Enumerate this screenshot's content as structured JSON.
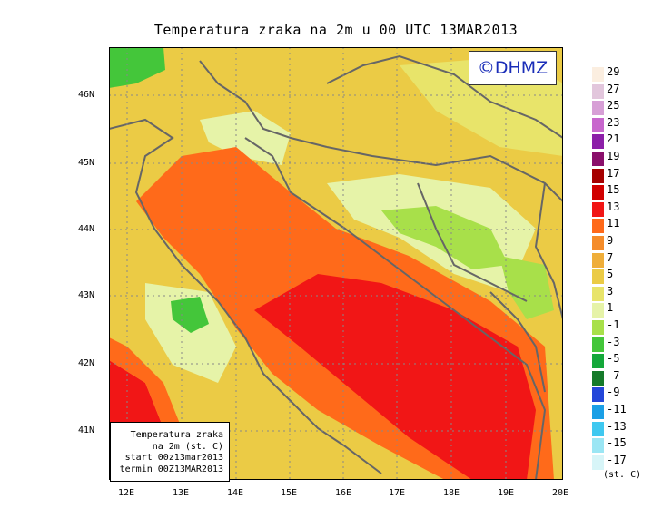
{
  "title": "Temperatura zraka na 2m u 00 UTC 13MAR2013",
  "stamp": "©DHMZ",
  "lat_labels": [
    "46N",
    "45N",
    "44N",
    "43N",
    "42N",
    "41N"
  ],
  "lon_labels": [
    "12E",
    "13E",
    "14E",
    "15E",
    "16E",
    "17E",
    "18E",
    "19E",
    "20E"
  ],
  "info": {
    "line1": "Temperatura zraka",
    "line2": "na 2m (st. C)",
    "line3": "start 00z13mar2013",
    "line4": "termin 00Z13MAR2013"
  },
  "legend": {
    "unit": "(st. C)",
    "labels": [
      "29",
      "27",
      "25",
      "23",
      "21",
      "19",
      "17",
      "15",
      "13",
      "11",
      "9",
      "7",
      "5",
      "3",
      "1",
      "-1",
      "-3",
      "-5",
      "-7",
      "-9",
      "-11",
      "-13",
      "-15",
      "-17"
    ],
    "colors": [
      "#fbeee0",
      "#e2c6dc",
      "#d79fd6",
      "#c867cd",
      "#8c1fa8",
      "#8a0f6b",
      "#a60000",
      "#d10000",
      "#f11616",
      "#ff6a1a",
      "#f58c2a",
      "#efae3a",
      "#ebcb45",
      "#e8e46a",
      "#e6f3a8",
      "#a8e04a",
      "#44c63a",
      "#14a83a",
      "#157a2a",
      "#2446d9",
      "#1a9fe6",
      "#3fc8f0",
      "#9be6f4",
      "#d7f5f8"
    ]
  },
  "colors": {
    "coast": "#666666",
    "sea_warm": "#ff6a1a",
    "sea_hot": "#f11616",
    "land_mild": "#ebcb45",
    "land_cool": "#e6f3a8",
    "land_cold": "#a8e04a"
  }
}
